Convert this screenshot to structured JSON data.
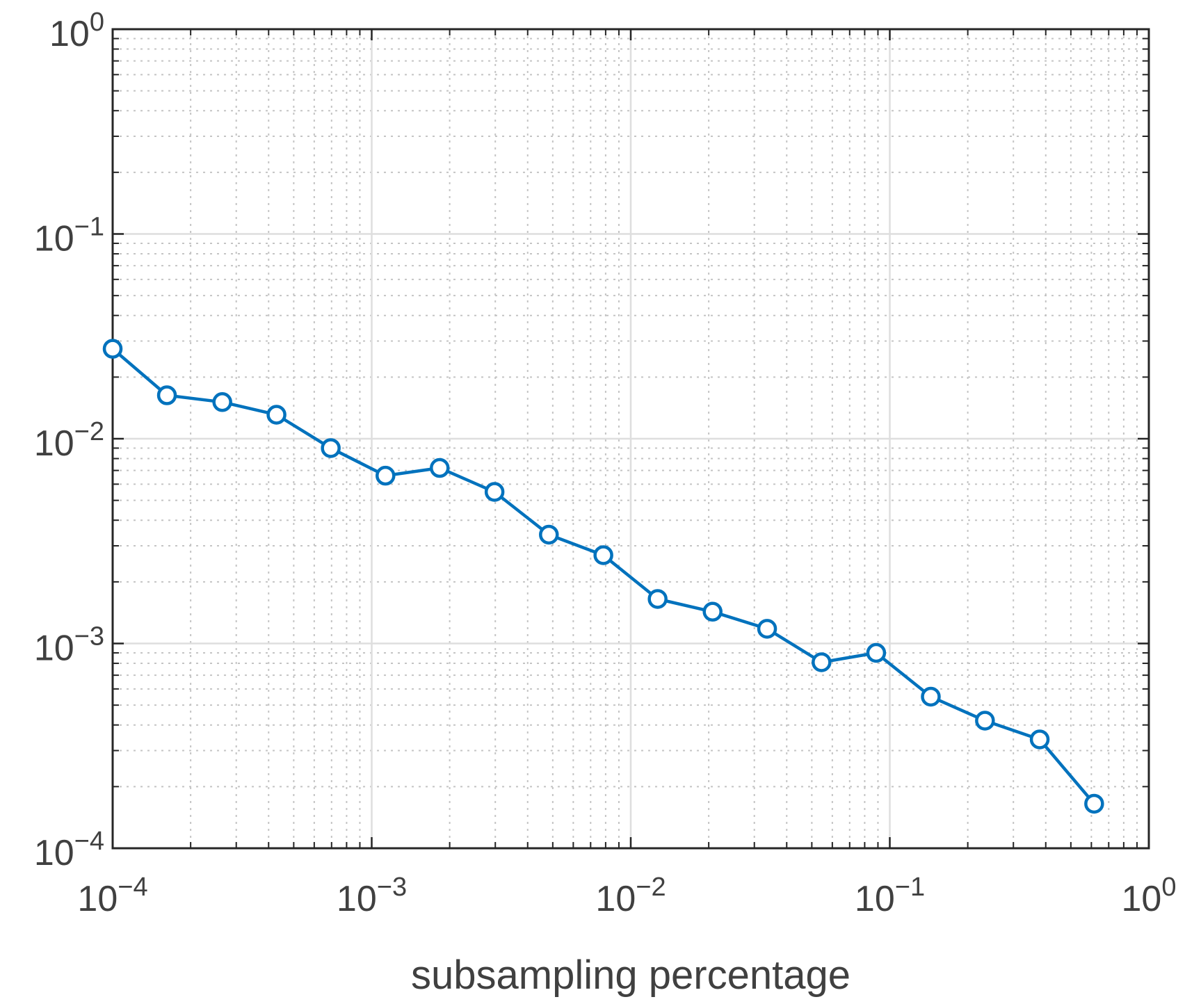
{
  "chart_data": {
    "type": "line",
    "title": "",
    "xlabel": "subsampling percentage",
    "ylabel": "",
    "xscale": "log",
    "yscale": "log",
    "xlim": [
      0.0001,
      1
    ],
    "ylim": [
      0.0001,
      1
    ],
    "grid": true,
    "minor_grid": true,
    "x_ticks": [
      {
        "value": 0.0001,
        "base": "10",
        "exp": "−4"
      },
      {
        "value": 0.001,
        "base": "10",
        "exp": "−3"
      },
      {
        "value": 0.01,
        "base": "10",
        "exp": "−2"
      },
      {
        "value": 0.1,
        "base": "10",
        "exp": "−1"
      },
      {
        "value": 1,
        "base": "10",
        "exp": "0"
      }
    ],
    "y_ticks": [
      {
        "value": 0.0001,
        "base": "10",
        "exp": "−4"
      },
      {
        "value": 0.001,
        "base": "10",
        "exp": "−3"
      },
      {
        "value": 0.01,
        "base": "10",
        "exp": "−2"
      },
      {
        "value": 0.1,
        "base": "10",
        "exp": "−1"
      },
      {
        "value": 1,
        "base": "10",
        "exp": "0"
      }
    ],
    "series": [
      {
        "color": "#0072BD",
        "marker": "circle",
        "x": [
          0.0001,
          0.000162,
          0.000265,
          0.000429,
          0.000695,
          0.00113,
          0.00183,
          0.00298,
          0.00483,
          0.00784,
          0.0127,
          0.0207,
          0.0336,
          0.0545,
          0.0886,
          0.144,
          0.233,
          0.379,
          0.615
        ],
        "y": [
          0.0275,
          0.0163,
          0.0151,
          0.0131,
          0.009,
          0.0066,
          0.0072,
          0.0055,
          0.0034,
          0.0027,
          0.00165,
          0.00143,
          0.00118,
          0.00081,
          0.0009,
          0.00055,
          0.00042,
          0.00034,
          0.000165
        ]
      }
    ]
  }
}
